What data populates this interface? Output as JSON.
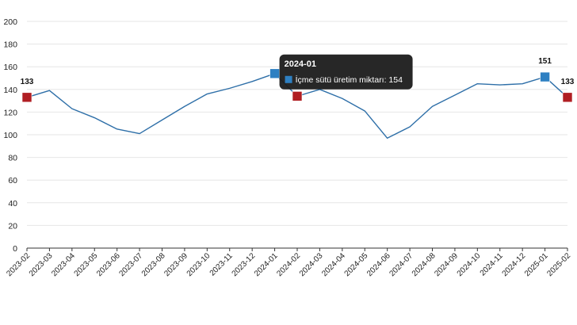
{
  "chart_data": {
    "type": "line",
    "categories": [
      "2023-02",
      "2023-03",
      "2023-04",
      "2023-05",
      "2023-06",
      "2023-07",
      "2023-08",
      "2023-09",
      "2023-10",
      "2023-11",
      "2023-12",
      "2024-01",
      "2024-02",
      "2024-03",
      "2024-04",
      "2024-05",
      "2024-06",
      "2024-07",
      "2024-08",
      "2024-09",
      "2024-10",
      "2024-11",
      "2024-12",
      "2025-01",
      "2025-02"
    ],
    "series": [
      {
        "name": "İçme sütü üretim miktarı",
        "values": [
          133,
          139,
          123,
          115,
          105,
          101,
          113,
          125,
          136,
          141,
          147,
          154,
          134,
          140,
          132,
          121,
          97,
          107,
          125,
          135,
          145,
          144,
          145,
          151,
          133
        ],
        "color": "#2e6fa8"
      }
    ],
    "ylim": [
      0,
      200
    ],
    "yticks": [
      0,
      20,
      40,
      60,
      80,
      100,
      120,
      140,
      160,
      180,
      200
    ],
    "grid": true,
    "data_labels": [
      {
        "category": "2023-02",
        "text": "133"
      },
      {
        "category": "2025-01",
        "text": "151"
      },
      {
        "category": "2025-02",
        "text": "133"
      }
    ],
    "markers": [
      {
        "category": "2023-02",
        "color": "#b01e23"
      },
      {
        "category": "2024-01",
        "color": "#2e80c2"
      },
      {
        "category": "2024-02",
        "color": "#b01e23"
      },
      {
        "category": "2025-01",
        "color": "#2e80c2"
      },
      {
        "category": "2025-02",
        "color": "#b01e23"
      }
    ],
    "tooltip": {
      "category": "2024-01",
      "title": "2024-01",
      "text": "İçme sütü üretim miktarı: 154",
      "swatch_color": "#2e80c2"
    }
  }
}
